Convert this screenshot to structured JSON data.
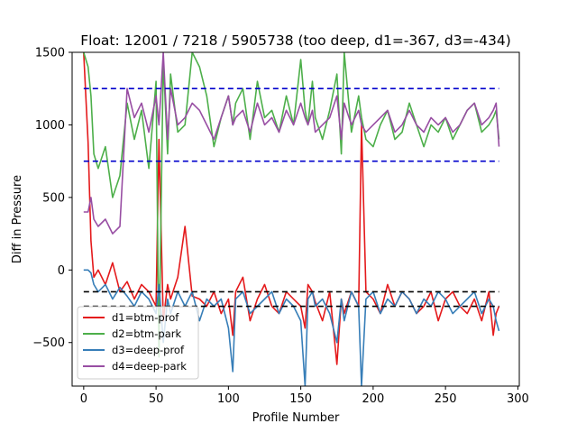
{
  "chart_data": {
    "type": "line",
    "title": "Float: 12001 / 7218 / 5905738 (too deep, d1=-367, d3=-434)",
    "xlabel": "Profile Number",
    "ylabel": "Diff in Pressure",
    "xlim": [
      -8,
      301
    ],
    "ylim": [
      -800,
      1500
    ],
    "xticks": [
      0,
      50,
      100,
      150,
      200,
      250,
      300
    ],
    "yticks": [
      -500,
      0,
      500,
      1000,
      1500
    ],
    "legend_position": "lower-left",
    "grid": false,
    "reference_lines": [
      {
        "y": 1250,
        "color": "#0000cc",
        "style": "dashed"
      },
      {
        "y": 750,
        "color": "#0000cc",
        "style": "dashed"
      },
      {
        "y": -150,
        "color": "#000000",
        "style": "dashed"
      },
      {
        "y": -250,
        "color": "#000000",
        "style": "dashed"
      }
    ],
    "series": [
      {
        "name": "d1=btm-prof",
        "color": "#e41a1c",
        "x": [
          0,
          3,
          5,
          7,
          10,
          15,
          20,
          25,
          30,
          35,
          40,
          45,
          50,
          52,
          55,
          58,
          60,
          65,
          70,
          75,
          80,
          85,
          90,
          95,
          100,
          103,
          105,
          110,
          115,
          120,
          125,
          130,
          135,
          140,
          145,
          150,
          153,
          155,
          158,
          160,
          165,
          170,
          175,
          178,
          180,
          185,
          190,
          192,
          195,
          200,
          205,
          210,
          215,
          220,
          225,
          230,
          235,
          240,
          245,
          250,
          255,
          260,
          265,
          270,
          275,
          280,
          283,
          285,
          287
        ],
        "y": [
          1500,
          880,
          200,
          -50,
          0,
          -100,
          50,
          -150,
          -80,
          -200,
          -100,
          -150,
          -250,
          900,
          -350,
          -100,
          -200,
          -50,
          300,
          -180,
          -200,
          -250,
          -150,
          -300,
          -200,
          -450,
          -150,
          -50,
          -350,
          -200,
          -100,
          -250,
          -300,
          -150,
          -200,
          -250,
          -400,
          -100,
          -150,
          -220,
          -350,
          -150,
          -650,
          -200,
          -300,
          -150,
          -250,
          1000,
          -150,
          -200,
          -300,
          -100,
          -250,
          -150,
          -200,
          -300,
          -250,
          -150,
          -350,
          -200,
          -150,
          -250,
          -300,
          -200,
          -350,
          -150,
          -450,
          -300,
          -250
        ]
      },
      {
        "name": "d2=btm-park",
        "color": "#4daf4a",
        "x": [
          0,
          3,
          5,
          7,
          10,
          15,
          20,
          25,
          30,
          35,
          40,
          45,
          50,
          52,
          55,
          58,
          60,
          65,
          70,
          75,
          80,
          85,
          90,
          95,
          100,
          103,
          105,
          110,
          115,
          120,
          125,
          130,
          135,
          140,
          145,
          150,
          153,
          155,
          158,
          160,
          165,
          170,
          175,
          178,
          180,
          185,
          190,
          192,
          195,
          200,
          205,
          210,
          215,
          220,
          225,
          230,
          235,
          240,
          245,
          250,
          255,
          260,
          265,
          270,
          275,
          280,
          283,
          285,
          287
        ],
        "y": [
          1500,
          1400,
          1200,
          800,
          700,
          850,
          500,
          650,
          1150,
          900,
          1100,
          700,
          1300,
          -600,
          1450,
          800,
          1350,
          950,
          1000,
          1500,
          1400,
          1200,
          850,
          1050,
          1200,
          1000,
          1150,
          1250,
          900,
          1300,
          1050,
          1100,
          950,
          1200,
          1000,
          1450,
          1100,
          1000,
          1300,
          1050,
          900,
          1100,
          1350,
          800,
          1500,
          950,
          1200,
          1050,
          900,
          850,
          1000,
          1100,
          900,
          950,
          1150,
          1000,
          850,
          1000,
          950,
          1050,
          900,
          1000,
          1100,
          1150,
          950,
          1000,
          1050,
          1100,
          900
        ]
      },
      {
        "name": "d3=deep-prof",
        "color": "#377eb8",
        "x": [
          0,
          3,
          5,
          7,
          10,
          15,
          20,
          25,
          30,
          35,
          40,
          45,
          50,
          52,
          55,
          58,
          60,
          65,
          70,
          75,
          80,
          85,
          90,
          95,
          100,
          103,
          105,
          110,
          115,
          120,
          125,
          130,
          135,
          140,
          145,
          150,
          153,
          155,
          158,
          160,
          165,
          170,
          175,
          178,
          180,
          185,
          190,
          192,
          195,
          200,
          205,
          210,
          215,
          220,
          225,
          230,
          235,
          240,
          245,
          250,
          255,
          260,
          265,
          270,
          275,
          280,
          283,
          285,
          287
        ],
        "y": [
          0,
          0,
          -20,
          -100,
          -150,
          -100,
          -200,
          -120,
          -180,
          -250,
          -150,
          -200,
          -300,
          -100,
          -500,
          -200,
          -300,
          -150,
          -250,
          -150,
          -350,
          -200,
          -250,
          -200,
          -400,
          -700,
          -200,
          -150,
          -300,
          -250,
          -200,
          -150,
          -300,
          -200,
          -250,
          -350,
          -800,
          -200,
          -150,
          -250,
          -200,
          -300,
          -500,
          -200,
          -350,
          -150,
          -250,
          -800,
          -200,
          -150,
          -300,
          -200,
          -250,
          -150,
          -200,
          -300,
          -200,
          -250,
          -150,
          -200,
          -300,
          -250,
          -200,
          -150,
          -300,
          -200,
          -250,
          -350,
          -420
        ]
      },
      {
        "name": "d4=deep-park",
        "color": "#984ea3",
        "x": [
          0,
          3,
          5,
          7,
          10,
          15,
          20,
          25,
          30,
          35,
          40,
          45,
          50,
          52,
          55,
          58,
          60,
          65,
          70,
          75,
          80,
          85,
          90,
          95,
          100,
          103,
          105,
          110,
          115,
          120,
          125,
          130,
          135,
          140,
          145,
          150,
          153,
          155,
          158,
          160,
          165,
          170,
          175,
          178,
          180,
          185,
          190,
          192,
          195,
          200,
          205,
          210,
          215,
          220,
          225,
          230,
          235,
          240,
          245,
          250,
          255,
          260,
          265,
          270,
          275,
          280,
          283,
          285,
          287
        ],
        "y": [
          400,
          400,
          500,
          350,
          300,
          350,
          250,
          300,
          1250,
          1050,
          1150,
          950,
          1200,
          1000,
          1500,
          900,
          1250,
          1000,
          1050,
          1150,
          1100,
          1000,
          900,
          1050,
          1200,
          1000,
          1050,
          1100,
          950,
          1150,
          1000,
          1050,
          950,
          1100,
          1000,
          1150,
          1050,
          1000,
          1100,
          950,
          1000,
          1050,
          1200,
          900,
          1150,
          1000,
          1100,
          1000,
          950,
          1000,
          1050,
          1100,
          950,
          1000,
          1100,
          1000,
          950,
          1050,
          1000,
          1050,
          950,
          1000,
          1100,
          1150,
          1000,
          1050,
          1100,
          1150,
          850
        ]
      }
    ]
  }
}
